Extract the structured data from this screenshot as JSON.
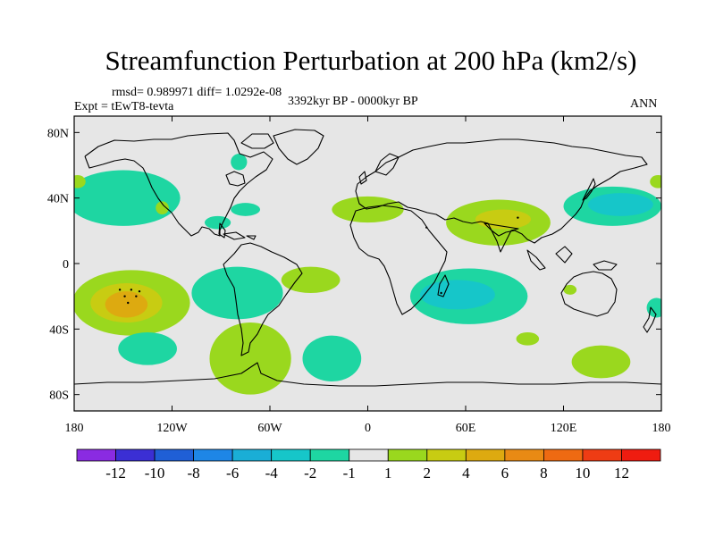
{
  "title": "Streamfunction Perturbation at 200 hPa (km2/s)",
  "stats_line": "rmsd= 0.989971 diff= 1.0292e-08",
  "experiment": "Expt = tEwT8-tevta",
  "period": "3392kyr BP - 0000kyr BP",
  "season": "ANN",
  "map": {
    "lat_range": [
      -90,
      90
    ],
    "lon_range": [
      -180,
      180
    ],
    "background_color": "#e6e6e6",
    "lat_ticks": [
      {
        "label": "80N",
        "lat": 80
      },
      {
        "label": "40N",
        "lat": 40
      },
      {
        "label": "0",
        "lat": 0
      },
      {
        "label": "40S",
        "lat": -40
      },
      {
        "label": "80S",
        "lat": -80
      }
    ],
    "lon_ticks": [
      {
        "label": "180",
        "lon": -180
      },
      {
        "label": "120W",
        "lon": -120
      },
      {
        "label": "60W",
        "lon": -60
      },
      {
        "label": "0",
        "lon": 0
      },
      {
        "label": "60E",
        "lon": 60
      },
      {
        "label": "120E",
        "lon": 120
      },
      {
        "label": "180",
        "lon": 180
      }
    ],
    "anomalies": [
      {
        "name": "north-atlantic-east-positive",
        "category": "1 to 2",
        "lon": -35,
        "lat": -10,
        "rlon": 18,
        "rlat": 8
      },
      {
        "name": "west-pacific-north-negative-outer",
        "category": "-2 to -1",
        "lon": -150,
        "lat": 40,
        "rlon": 35,
        "rlat": 17
      },
      {
        "name": "gulf-negative",
        "category": "-2 to -1",
        "lon": -75,
        "lat": 33,
        "rlon": 9,
        "rlat": 4
      },
      {
        "name": "mexico-negative",
        "category": "-2 to -1",
        "lon": -92,
        "lat": 25,
        "rlon": 8,
        "rlat": 4
      },
      {
        "name": "hudson-negative",
        "category": "-2 to -1",
        "lon": -79,
        "lat": 62,
        "rlon": 5,
        "rlat": 5
      },
      {
        "name": "southeast-pacific-negative",
        "category": "-2 to -1",
        "lon": -80,
        "lat": -18,
        "rlon": 28,
        "rlat": 16
      },
      {
        "name": "dateline-north-positive",
        "category": "1 to 2",
        "lon": -178,
        "lat": 50,
        "rlon": 5,
        "rlat": 4
      },
      {
        "name": "east-pacific-north-positive",
        "category": "1 to 2",
        "lon": 178,
        "lat": 50,
        "rlon": 5,
        "rlat": 4
      },
      {
        "name": "small-pacific-positive",
        "category": "1 to 2",
        "lon": -126,
        "lat": 34,
        "rlon": 4,
        "rlat": 4
      },
      {
        "name": "south-pacific-positive-outer",
        "category": "1 to 2",
        "lon": -145,
        "lat": -24,
        "rlon": 36,
        "rlat": 20
      },
      {
        "name": "south-pacific-positive-mid",
        "category": "2 to 4",
        "lon": -148,
        "lat": -24,
        "rlon": 22,
        "rlat": 12
      },
      {
        "name": "south-pacific-positive-core",
        "category": "4 to 6",
        "lon": -148,
        "lat": -25,
        "rlon": 13,
        "rlat": 8
      },
      {
        "name": "south-pacific-negative",
        "category": "-2 to -1",
        "lon": -135,
        "lat": -52,
        "rlon": 18,
        "rlat": 10
      },
      {
        "name": "patagonia-positive",
        "category": "1 to 2",
        "lon": -72,
        "lat": -58,
        "rlon": 25,
        "rlat": 22
      },
      {
        "name": "south-atlantic-negative",
        "category": "-2 to -1",
        "lon": -22,
        "lat": -58,
        "rlon": 18,
        "rlat": 14
      },
      {
        "name": "north-africa-positive",
        "category": "1 to 2",
        "lon": 0,
        "lat": 33,
        "rlon": 22,
        "rlat": 8
      },
      {
        "name": "arabian-sea-positive",
        "category": "1 to 2",
        "lon": 80,
        "lat": 25,
        "rlon": 32,
        "rlat": 14
      },
      {
        "name": "india-positive-core",
        "category": "2 to 4",
        "lon": 83,
        "lat": 27,
        "rlon": 17,
        "rlat": 6
      },
      {
        "name": "indian-ocean-negative-outer",
        "category": "-2 to -1",
        "lon": 62,
        "lat": -20,
        "rlon": 36,
        "rlat": 17
      },
      {
        "name": "indian-ocean-negative-core",
        "category": "-4 to -2",
        "lon": 55,
        "lat": -19,
        "rlon": 23,
        "rlat": 9
      },
      {
        "name": "north-pacific-west-negative",
        "category": "-2 to -1",
        "lon": 150,
        "lat": 35,
        "rlon": 30,
        "rlat": 12
      },
      {
        "name": "north-pacific-west-core",
        "category": "-4 to -2",
        "lon": 155,
        "lat": 36,
        "rlon": 20,
        "rlat": 7
      },
      {
        "name": "indian-ocean-south-positive",
        "category": "1 to 2",
        "lon": 98,
        "lat": -46,
        "rlon": 7,
        "rlat": 4
      },
      {
        "name": "australia-south-negative",
        "category": "-2 to -1",
        "lon": 177,
        "lat": -27,
        "rlon": 6,
        "rlat": 6
      },
      {
        "name": "tasman-positive",
        "category": "1 to 2",
        "lon": 143,
        "lat": -60,
        "rlon": 18,
        "rlat": 10
      },
      {
        "name": "nw-australia-positive",
        "category": "1 to 2",
        "lon": 124,
        "lat": -16,
        "rlon": 4,
        "rlat": 3
      }
    ],
    "gridpoint_dots": [
      {
        "lon": -152,
        "lat": -16
      },
      {
        "lon": -145,
        "lat": -16
      },
      {
        "lon": -140,
        "lat": -17
      },
      {
        "lon": -149,
        "lat": -20
      },
      {
        "lon": -142,
        "lat": -20
      },
      {
        "lon": -147,
        "lat": -24
      },
      {
        "lon": 36,
        "lat": 22
      },
      {
        "lon": 45,
        "lat": -18
      },
      {
        "lon": 92,
        "lat": 28
      }
    ]
  },
  "colorbar": {
    "labels": [
      "-12",
      "-10",
      "-8",
      "-6",
      "-4",
      "-2",
      "-1",
      "1",
      "2",
      "4",
      "6",
      "8",
      "10",
      "12"
    ],
    "colors": [
      "#8a2be2",
      "#3b2fd4",
      "#1f5fd6",
      "#1e86e6",
      "#1aaed6",
      "#16c6c9",
      "#1ed6a2",
      "#e6e6e6",
      "#9ad81e",
      "#c8cc12",
      "#ddaa10",
      "#e98a14",
      "#ee6a12",
      "#ee3c14",
      "#ef1c10"
    ]
  }
}
